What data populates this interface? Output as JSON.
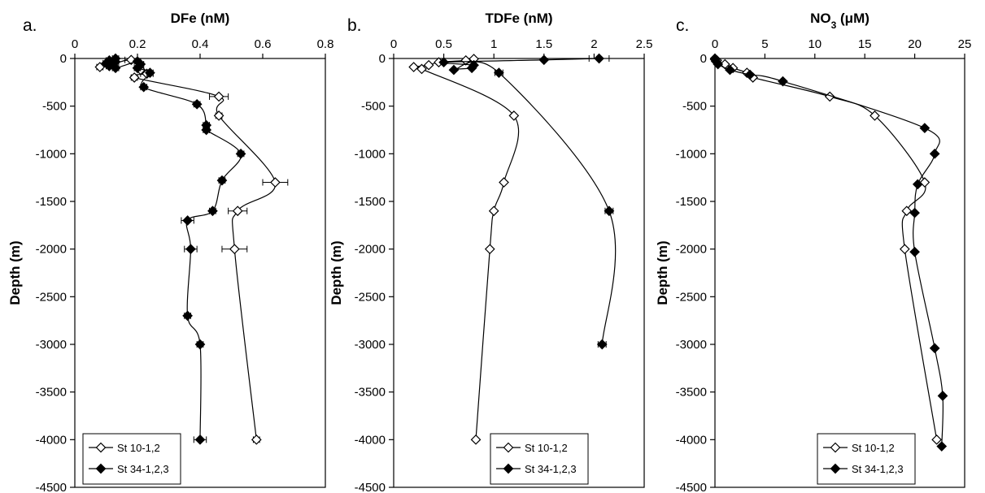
{
  "figure": {
    "panels": [
      {
        "letter": "a."
      },
      {
        "letter": "b."
      },
      {
        "letter": "c."
      }
    ]
  },
  "chart_data": [
    {
      "type": "line",
      "panel": "a.",
      "title": "",
      "xlabel": "DFe (nM)",
      "ylabel": "Depth (m)",
      "xlim": [
        0,
        0.8
      ],
      "ylim": [
        -4500,
        0
      ],
      "x_ticks": [
        "0",
        "0.2",
        "0.4",
        "0.6",
        "0.8"
      ],
      "y_ticks": [
        "0",
        "-500",
        "-1000",
        "-1500",
        "-2000",
        "-2500",
        "-3000",
        "-3500",
        "-4000",
        "-4500"
      ],
      "x_axis_position": "top",
      "grid": false,
      "legend_position": "bottom-left",
      "series": [
        {
          "name": "St 10-1,2",
          "marker": "open-diamond",
          "color": "#000000",
          "points": [
            {
              "x": 0.08,
              "y": -90,
              "err": 0.01
            },
            {
              "x": 0.12,
              "y": -60,
              "err": 0.01
            },
            {
              "x": 0.18,
              "y": -15,
              "err": 0.02
            },
            {
              "x": 0.21,
              "y": -120,
              "err": 0.01
            },
            {
              "x": 0.23,
              "y": -160,
              "err": 0.02
            },
            {
              "x": 0.19,
              "y": -200,
              "err": 0.01
            },
            {
              "x": 0.46,
              "y": -400,
              "err": 0.03
            },
            {
              "x": 0.46,
              "y": -600,
              "err": 0.01
            },
            {
              "x": 0.64,
              "y": -1300,
              "err": 0.04
            },
            {
              "x": 0.52,
              "y": -1600,
              "err": 0.03
            },
            {
              "x": 0.51,
              "y": -2000,
              "err": 0.04
            },
            {
              "x": 0.58,
              "y": -4000,
              "err": 0.01
            }
          ]
        },
        {
          "name": "St 34-1,2,3",
          "marker": "filled-diamond",
          "color": "#000000",
          "points": [
            {
              "x": 0.13,
              "y": 0,
              "err": 0.01
            },
            {
              "x": 0.11,
              "y": -20,
              "err": 0.01
            },
            {
              "x": 0.13,
              "y": -35,
              "err": 0.01
            },
            {
              "x": 0.1,
              "y": -50,
              "err": 0.01
            },
            {
              "x": 0.12,
              "y": -60,
              "err": 0.01
            },
            {
              "x": 0.11,
              "y": -80,
              "err": 0.01
            },
            {
              "x": 0.13,
              "y": -100,
              "err": 0.01
            },
            {
              "x": 0.2,
              "y": -30,
              "err": 0.01
            },
            {
              "x": 0.21,
              "y": -60,
              "err": 0.01
            },
            {
              "x": 0.2,
              "y": -100,
              "err": 0.01
            },
            {
              "x": 0.24,
              "y": -150,
              "err": 0.01
            },
            {
              "x": 0.22,
              "y": -300,
              "err": 0.01
            },
            {
              "x": 0.39,
              "y": -480,
              "err": 0.01
            },
            {
              "x": 0.42,
              "y": -700,
              "err": 0.01
            },
            {
              "x": 0.42,
              "y": -750,
              "err": 0.01
            },
            {
              "x": 0.53,
              "y": -1000,
              "err": 0.01
            },
            {
              "x": 0.47,
              "y": -1280,
              "err": 0.01
            },
            {
              "x": 0.44,
              "y": -1600,
              "err": 0.01
            },
            {
              "x": 0.36,
              "y": -1700,
              "err": 0.02
            },
            {
              "x": 0.37,
              "y": -2000,
              "err": 0.02
            },
            {
              "x": 0.36,
              "y": -2700,
              "err": 0.01
            },
            {
              "x": 0.4,
              "y": -3000,
              "err": 0.01
            },
            {
              "x": 0.4,
              "y": -4000,
              "err": 0.02
            }
          ]
        }
      ]
    },
    {
      "type": "line",
      "panel": "b.",
      "title": "",
      "xlabel": "TDFe (nM)",
      "ylabel": "Depth (m)",
      "xlim": [
        0,
        2.5
      ],
      "ylim": [
        -4500,
        0
      ],
      "x_ticks": [
        "0",
        "0.5",
        "1",
        "1.5",
        "2",
        "2.5"
      ],
      "y_ticks": [
        "0",
        "-500",
        "-1000",
        "-1500",
        "-2000",
        "-2500",
        "-3000",
        "-3500",
        "-4000",
        "-4500"
      ],
      "x_axis_position": "top",
      "grid": false,
      "legend_position": "bottom-right",
      "series": [
        {
          "name": "St 10-1,2",
          "marker": "open-diamond",
          "color": "#000000",
          "points": [
            {
              "x": 0.8,
              "y": -5
            },
            {
              "x": 0.72,
              "y": -20
            },
            {
              "x": 0.45,
              "y": -40
            },
            {
              "x": 0.35,
              "y": -70
            },
            {
              "x": 0.2,
              "y": -90
            },
            {
              "x": 0.28,
              "y": -110
            },
            {
              "x": 1.2,
              "y": -600
            },
            {
              "x": 1.1,
              "y": -1300
            },
            {
              "x": 1.0,
              "y": -1600
            },
            {
              "x": 0.96,
              "y": -2000
            },
            {
              "x": 0.82,
              "y": -4000
            }
          ]
        },
        {
          "name": "St 34-1,2,3",
          "marker": "filled-diamond",
          "color": "#000000",
          "points": [
            {
              "x": 2.05,
              "y": 0,
              "err": 0.1
            },
            {
              "x": 1.5,
              "y": -15
            },
            {
              "x": 0.5,
              "y": -40
            },
            {
              "x": 0.8,
              "y": -70
            },
            {
              "x": 0.78,
              "y": -100
            },
            {
              "x": 0.6,
              "y": -120
            },
            {
              "x": 1.05,
              "y": -150,
              "err": 0.04
            },
            {
              "x": 2.15,
              "y": -1600,
              "err": 0.04
            },
            {
              "x": 2.08,
              "y": -3000,
              "err": 0.04
            }
          ]
        }
      ]
    },
    {
      "type": "line",
      "panel": "c.",
      "title": "",
      "xlabel_main": "NO",
      "xlabel_sub": "3",
      "xlabel_unit": " (μM)",
      "ylabel": "Depth (m)",
      "xlim": [
        0,
        25
      ],
      "ylim": [
        -4500,
        0
      ],
      "x_ticks": [
        "0",
        "5",
        "10",
        "15",
        "20",
        "25"
      ],
      "y_ticks": [
        "0",
        "-500",
        "-1000",
        "-1500",
        "-2000",
        "-2500",
        "-3000",
        "-3500",
        "-4000",
        "-4500"
      ],
      "x_axis_position": "top",
      "grid": false,
      "legend_position": "bottom-right",
      "series": [
        {
          "name": "St 10-1,2",
          "marker": "open-diamond",
          "color": "#000000",
          "points": [
            {
              "x": 0,
              "y": 0
            },
            {
              "x": 0.2,
              "y": -20
            },
            {
              "x": 1.0,
              "y": -60
            },
            {
              "x": 1.8,
              "y": -100
            },
            {
              "x": 3.2,
              "y": -150
            },
            {
              "x": 3.8,
              "y": -200
            },
            {
              "x": 11.5,
              "y": -400
            },
            {
              "x": 16.0,
              "y": -600
            },
            {
              "x": 21.0,
              "y": -1300
            },
            {
              "x": 19.2,
              "y": -1600
            },
            {
              "x": 19.0,
              "y": -2000
            },
            {
              "x": 22.2,
              "y": -4000
            }
          ]
        },
        {
          "name": "St 34-1,2,3",
          "marker": "filled-diamond",
          "color": "#000000",
          "points": [
            {
              "x": 0,
              "y": -10
            },
            {
              "x": 0.1,
              "y": -30
            },
            {
              "x": 0.3,
              "y": -60
            },
            {
              "x": 1.5,
              "y": -120
            },
            {
              "x": 3.5,
              "y": -170
            },
            {
              "x": 6.8,
              "y": -240
            },
            {
              "x": 21.0,
              "y": -730
            },
            {
              "x": 22.0,
              "y": -1000
            },
            {
              "x": 20.3,
              "y": -1320
            },
            {
              "x": 20.0,
              "y": -1620
            },
            {
              "x": 20.0,
              "y": -2030
            },
            {
              "x": 22.0,
              "y": -3040
            },
            {
              "x": 22.8,
              "y": -3540
            },
            {
              "x": 22.7,
              "y": -4070
            }
          ]
        }
      ]
    }
  ]
}
